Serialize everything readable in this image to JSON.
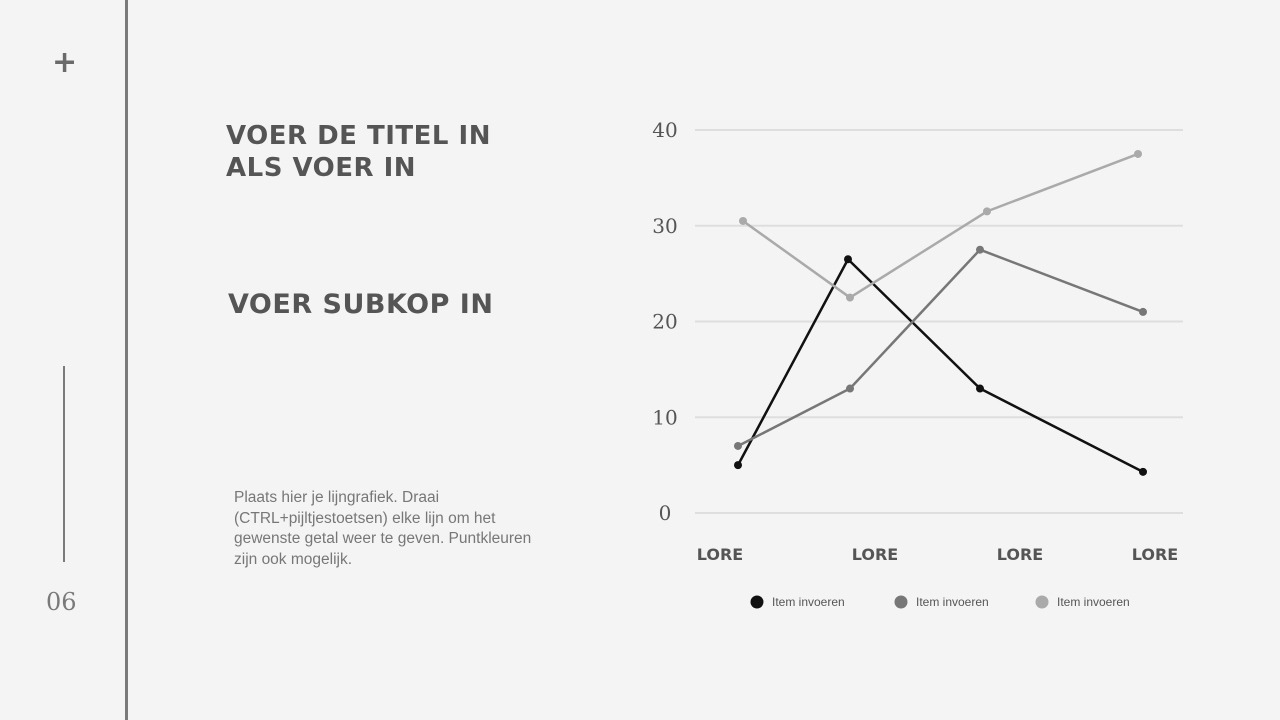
{
  "slide": {
    "plus_icon": "+",
    "page_number": "06",
    "title": "Voer de titel in als voer in",
    "subtitle": "Voer subkop in",
    "body": "Plaats hier je lijngrafiek. Draai (CTRL+pijltjestoetsen) elke lijn om het gewenste getal weer te geven. Puntkleuren zijn ook mogelijk."
  },
  "chart_data": {
    "type": "line",
    "categories": [
      "LORE",
      "LORE",
      "LORE",
      "LORE"
    ],
    "ylim": [
      0,
      40
    ],
    "yticks": [
      0,
      10,
      20,
      30,
      40
    ],
    "grid": true,
    "legend_position": "bottom",
    "series": [
      {
        "name": "Item invoeren",
        "color": "#111111",
        "values": [
          5,
          26.5,
          13,
          4.3
        ]
      },
      {
        "name": "Item invoeren",
        "color": "#777777",
        "values": [
          7,
          13,
          27.5,
          21
        ]
      },
      {
        "name": "Item invoeren",
        "color": "#aaaaaa",
        "values": [
          30.5,
          22.5,
          31.5,
          37.5
        ]
      }
    ]
  }
}
